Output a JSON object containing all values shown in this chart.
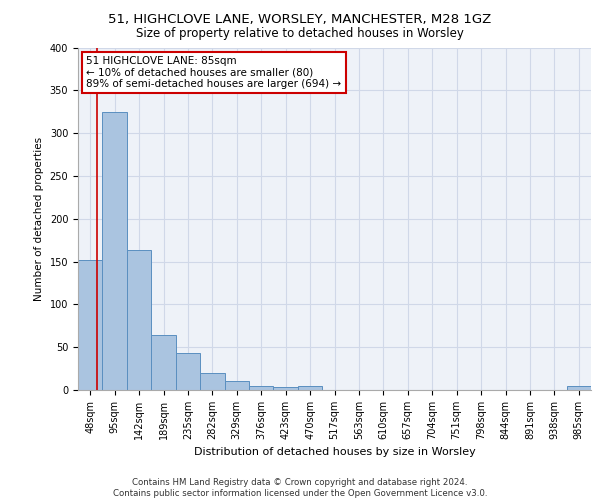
{
  "title1": "51, HIGHCLOVE LANE, WORSLEY, MANCHESTER, M28 1GZ",
  "title2": "Size of property relative to detached houses in Worsley",
  "xlabel": "Distribution of detached houses by size in Worsley",
  "ylabel": "Number of detached properties",
  "footer1": "Contains HM Land Registry data © Crown copyright and database right 2024.",
  "footer2": "Contains public sector information licensed under the Open Government Licence v3.0.",
  "categories": [
    "48sqm",
    "95sqm",
    "142sqm",
    "189sqm",
    "235sqm",
    "282sqm",
    "329sqm",
    "376sqm",
    "423sqm",
    "470sqm",
    "517sqm",
    "563sqm",
    "610sqm",
    "657sqm",
    "704sqm",
    "751sqm",
    "798sqm",
    "844sqm",
    "891sqm",
    "938sqm",
    "985sqm"
  ],
  "values": [
    152,
    325,
    164,
    64,
    43,
    20,
    10,
    5,
    4,
    5,
    0,
    0,
    0,
    0,
    0,
    0,
    0,
    0,
    0,
    0,
    5
  ],
  "bar_color": "#aac4e0",
  "bar_edge_color": "#5a8fc0",
  "grid_color": "#d0d8e8",
  "background_color": "#eef2f8",
  "annotation_line1": "51 HIGHCLOVE LANE: 85sqm",
  "annotation_line2": "← 10% of detached houses are smaller (80)",
  "annotation_line3": "89% of semi-detached houses are larger (694) →",
  "annotation_box_color": "#ffffff",
  "annotation_border_color": "#cc0000",
  "property_line_color": "#cc0000",
  "ylim": [
    0,
    400
  ],
  "yticks": [
    0,
    50,
    100,
    150,
    200,
    250,
    300,
    350,
    400
  ],
  "title1_fontsize": 9.5,
  "title2_fontsize": 8.5,
  "xlabel_fontsize": 8.0,
  "ylabel_fontsize": 7.5,
  "tick_fontsize": 7.0,
  "footer_fontsize": 6.2,
  "annot_fontsize": 7.5
}
